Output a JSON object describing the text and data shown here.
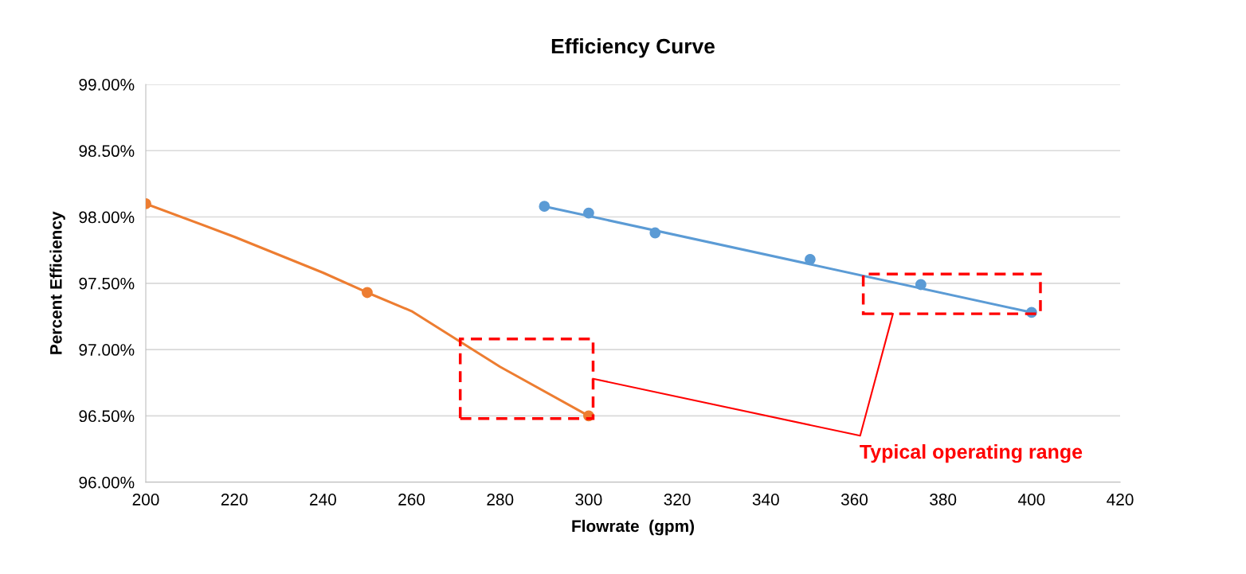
{
  "chart_data": {
    "type": "scatter",
    "title": "Efficiency Curve",
    "xlabel": "Flowrate  (gpm)",
    "ylabel": "Percent Efficiency",
    "series": [
      {
        "color": "#5b9bd5",
        "x": [
          290,
          300,
          315,
          350,
          375,
          400
        ],
        "values": [
          98.08,
          98.03,
          97.88,
          97.68,
          97.49,
          97.28
        ]
      },
      {
        "type": "line",
        "color": "#5b9bd5",
        "marker": "none",
        "x": [
          290,
          400
        ],
        "values": [
          98.08,
          97.28
        ]
      },
      {
        "color": "#ed7d31",
        "x": [
          200,
          250,
          300
        ],
        "values": [
          98.1,
          97.43,
          96.5
        ]
      },
      {
        "type": "line",
        "color": "#ed7d31",
        "marker": "none",
        "x": [
          200,
          220,
          240,
          250,
          260,
          280,
          300
        ],
        "values": [
          98.1,
          97.85,
          97.58,
          97.43,
          97.29,
          96.87,
          96.5
        ]
      }
    ],
    "marker": "circle",
    "line_style": "solid",
    "xlim": [
      200,
      420
    ],
    "xticks": [
      200,
      220,
      240,
      260,
      280,
      300,
      320,
      340,
      360,
      380,
      400,
      420
    ],
    "ylim": [
      96,
      99
    ],
    "yticks": [
      {
        "value": 96,
        "label": "96.00%"
      },
      {
        "value": 96.5,
        "label": "96.50%"
      },
      {
        "value": 97,
        "label": "97.00%"
      },
      {
        "value": 97.5,
        "label": "97.50%"
      },
      {
        "value": 98,
        "label": "98.00%"
      },
      {
        "value": 98.5,
        "label": "98.50%"
      },
      {
        "value": 99,
        "label": "99.00%"
      }
    ],
    "grid": "y",
    "annotations": [
      "Typical operating range"
    ]
  }
}
